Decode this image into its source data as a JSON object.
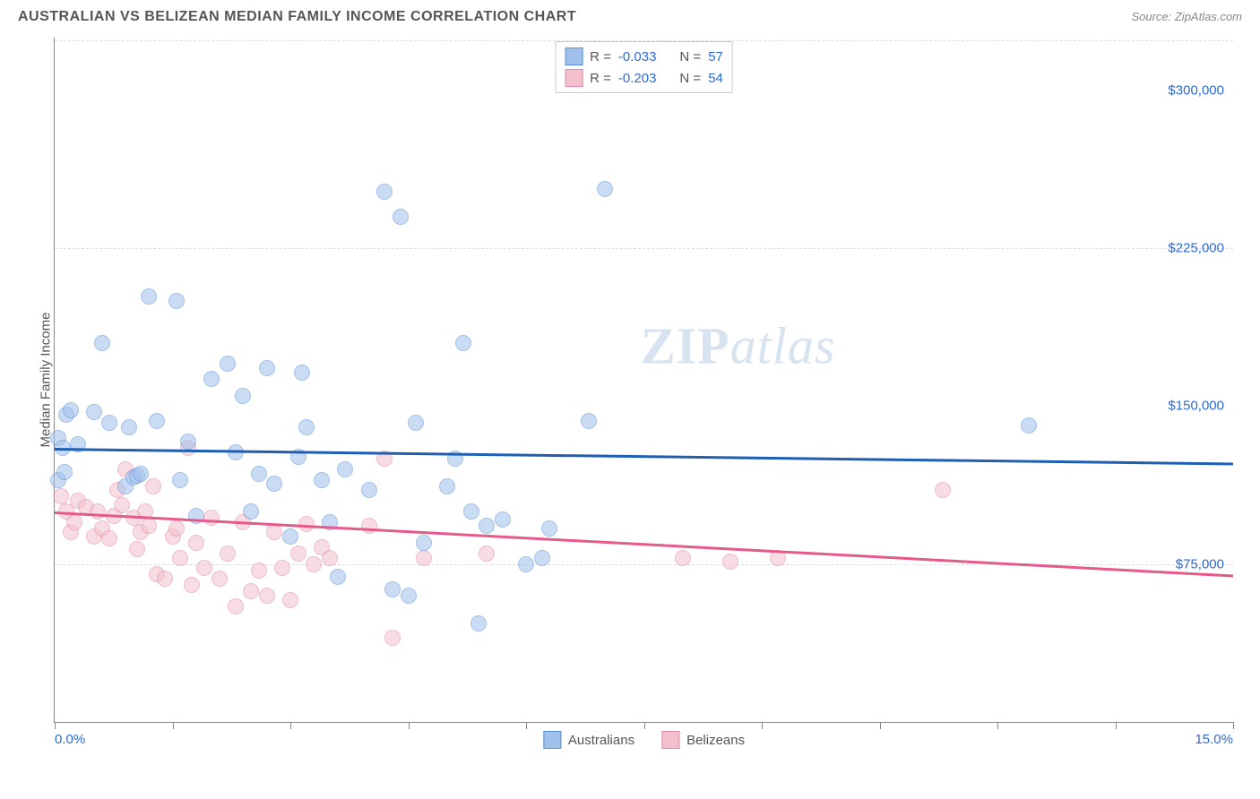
{
  "title": "AUSTRALIAN VS BELIZEAN MEDIAN FAMILY INCOME CORRELATION CHART",
  "source": "Source: ZipAtlas.com",
  "watermark_zip": "ZIP",
  "watermark_atlas": "atlas",
  "chart": {
    "type": "scatter",
    "y_axis_label": "Median Family Income",
    "background_color": "#ffffff",
    "grid_color": "#dddddd",
    "axis_color": "#888888",
    "tick_label_color": "#2e6ad1",
    "xlim": [
      0,
      15
    ],
    "ylim": [
      0,
      325000
    ],
    "x_ticks": [
      0,
      1.5,
      3,
      4.5,
      6,
      7.5,
      9,
      10.5,
      12,
      13.5,
      15
    ],
    "x_tick_labels": {
      "0": "0.0%",
      "15": "15.0%"
    },
    "y_gridlines": [
      75000,
      225000
    ],
    "y_tick_labels": [
      {
        "v": 75000,
        "label": "$75,000"
      },
      {
        "v": 150000,
        "label": "$150,000"
      },
      {
        "v": 225000,
        "label": "$225,000"
      },
      {
        "v": 300000,
        "label": "$300,000"
      }
    ],
    "point_radius": 9,
    "point_opacity": 0.55,
    "series": [
      {
        "name": "Australians",
        "fill_color": "#a0c1ec",
        "stroke_color": "#5a8fd6",
        "line_color": "#1e5fb3",
        "r_label": "R =",
        "r_value": "-0.033",
        "n_label": "N =",
        "n_value": "57",
        "trend": {
          "y_at_x0": 130000,
          "y_at_x15": 123000
        },
        "points": [
          [
            0.05,
            115000
          ],
          [
            0.05,
            135000
          ],
          [
            0.1,
            130000
          ],
          [
            0.15,
            146000
          ],
          [
            0.2,
            148000
          ],
          [
            0.3,
            132000
          ],
          [
            0.5,
            147000
          ],
          [
            0.6,
            180000
          ],
          [
            0.7,
            142000
          ],
          [
            0.9,
            112000
          ],
          [
            0.95,
            140000
          ],
          [
            1.0,
            116000
          ],
          [
            1.05,
            117000
          ],
          [
            1.1,
            118000
          ],
          [
            1.2,
            202000
          ],
          [
            1.3,
            143000
          ],
          [
            1.55,
            200000
          ],
          [
            1.6,
            115000
          ],
          [
            1.7,
            133000
          ],
          [
            1.8,
            98000
          ],
          [
            2.0,
            163000
          ],
          [
            2.2,
            170000
          ],
          [
            2.3,
            128000
          ],
          [
            2.4,
            155000
          ],
          [
            2.5,
            100000
          ],
          [
            2.6,
            118000
          ],
          [
            2.7,
            168000
          ],
          [
            2.8,
            113000
          ],
          [
            3.0,
            88000
          ],
          [
            3.1,
            126000
          ],
          [
            3.15,
            166000
          ],
          [
            3.2,
            140000
          ],
          [
            3.4,
            115000
          ],
          [
            3.5,
            95000
          ],
          [
            3.6,
            69000
          ],
          [
            3.7,
            120000
          ],
          [
            4.0,
            110000
          ],
          [
            4.2,
            252000
          ],
          [
            4.3,
            63000
          ],
          [
            4.4,
            240000
          ],
          [
            4.5,
            60000
          ],
          [
            4.6,
            142000
          ],
          [
            4.7,
            85000
          ],
          [
            5.0,
            112000
          ],
          [
            5.1,
            125000
          ],
          [
            5.2,
            180000
          ],
          [
            5.3,
            100000
          ],
          [
            5.4,
            47000
          ],
          [
            5.5,
            93000
          ],
          [
            5.7,
            96000
          ],
          [
            6.0,
            75000
          ],
          [
            6.2,
            78000
          ],
          [
            6.3,
            92000
          ],
          [
            6.8,
            143000
          ],
          [
            7.0,
            253000
          ],
          [
            12.4,
            141000
          ],
          [
            0.12,
            118500
          ]
        ]
      },
      {
        "name": "Belizeans",
        "fill_color": "#f4c0cd",
        "stroke_color": "#e089a3",
        "line_color": "#e55a8a",
        "r_label": "R =",
        "r_value": "-0.203",
        "n_label": "N =",
        "n_value": "54",
        "trend": {
          "y_at_x0": 100000,
          "y_at_x15": 70000
        },
        "points": [
          [
            0.08,
            107000
          ],
          [
            0.15,
            100000
          ],
          [
            0.2,
            90000
          ],
          [
            0.25,
            95000
          ],
          [
            0.3,
            105000
          ],
          [
            0.4,
            102000
          ],
          [
            0.5,
            88000
          ],
          [
            0.55,
            100000
          ],
          [
            0.6,
            92000
          ],
          [
            0.7,
            87000
          ],
          [
            0.75,
            98000
          ],
          [
            0.8,
            110000
          ],
          [
            0.85,
            103000
          ],
          [
            0.9,
            120000
          ],
          [
            1.0,
            97000
          ],
          [
            1.05,
            82000
          ],
          [
            1.1,
            90000
          ],
          [
            1.15,
            100000
          ],
          [
            1.2,
            93000
          ],
          [
            1.25,
            112000
          ],
          [
            1.3,
            70000
          ],
          [
            1.4,
            68000
          ],
          [
            1.5,
            88000
          ],
          [
            1.55,
            92000
          ],
          [
            1.6,
            78000
          ],
          [
            1.7,
            130000
          ],
          [
            1.75,
            65000
          ],
          [
            1.8,
            85000
          ],
          [
            1.9,
            73000
          ],
          [
            2.0,
            97000
          ],
          [
            2.1,
            68000
          ],
          [
            2.2,
            80000
          ],
          [
            2.3,
            55000
          ],
          [
            2.4,
            95000
          ],
          [
            2.5,
            62000
          ],
          [
            2.6,
            72000
          ],
          [
            2.7,
            60000
          ],
          [
            2.8,
            90000
          ],
          [
            2.9,
            73000
          ],
          [
            3.0,
            58000
          ],
          [
            3.1,
            80000
          ],
          [
            3.2,
            94000
          ],
          [
            3.3,
            75000
          ],
          [
            3.4,
            83000
          ],
          [
            3.5,
            78000
          ],
          [
            4.0,
            93000
          ],
          [
            4.2,
            125000
          ],
          [
            4.3,
            40000
          ],
          [
            4.7,
            78000
          ],
          [
            5.5,
            80000
          ],
          [
            8.0,
            78000
          ],
          [
            8.6,
            76000
          ],
          [
            9.2,
            78000
          ],
          [
            11.3,
            110000
          ]
        ]
      }
    ]
  }
}
